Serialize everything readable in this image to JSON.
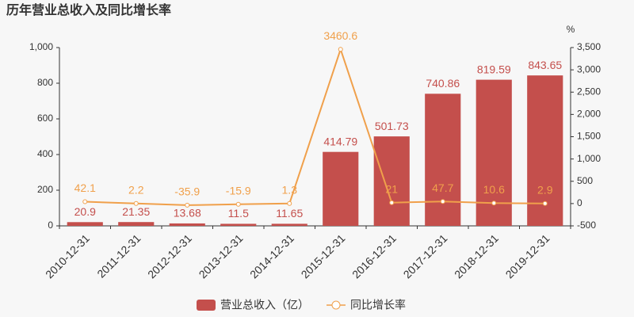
{
  "chart_data": {
    "type": "bar",
    "title": "历年营业总收入及同比增长率",
    "y2_unit": "%",
    "categories": [
      "2010-12-31",
      "2011-12-31",
      "2012-12-31",
      "2013-12-31",
      "2014-12-31",
      "2015-12-31",
      "2016-12-31",
      "2017-12-31",
      "2018-12-31",
      "2019-12-31"
    ],
    "series": [
      {
        "name": "营业总收入（亿）",
        "type": "bar",
        "color": "#c44f4c",
        "values": [
          20.9,
          21.35,
          13.68,
          11.5,
          11.65,
          414.79,
          501.73,
          740.86,
          819.59,
          843.65
        ]
      },
      {
        "name": "同比增长率",
        "type": "line",
        "axis": "y2",
        "color": "#f0a04b",
        "values": [
          42.1,
          2.2,
          -35.9,
          -15.9,
          1.3,
          3460.6,
          21,
          47.7,
          10.6,
          2.9
        ]
      }
    ],
    "ylim": [
      0,
      1000
    ],
    "yticks": [
      0,
      200,
      400,
      600,
      800,
      {
        "value": 1000,
        "label": "1,000"
      }
    ],
    "y2lim": [
      -500,
      3500
    ],
    "y2ticks": [
      -500,
      0,
      500,
      {
        "value": 1000,
        "label": "1,000"
      },
      {
        "value": 1500,
        "label": "1,500"
      },
      {
        "value": 2000,
        "label": "2,000"
      },
      {
        "value": 2500,
        "label": "2,500"
      },
      {
        "value": 3000,
        "label": "3,000"
      },
      {
        "value": 3500,
        "label": "3,500"
      }
    ],
    "grid": false
  }
}
